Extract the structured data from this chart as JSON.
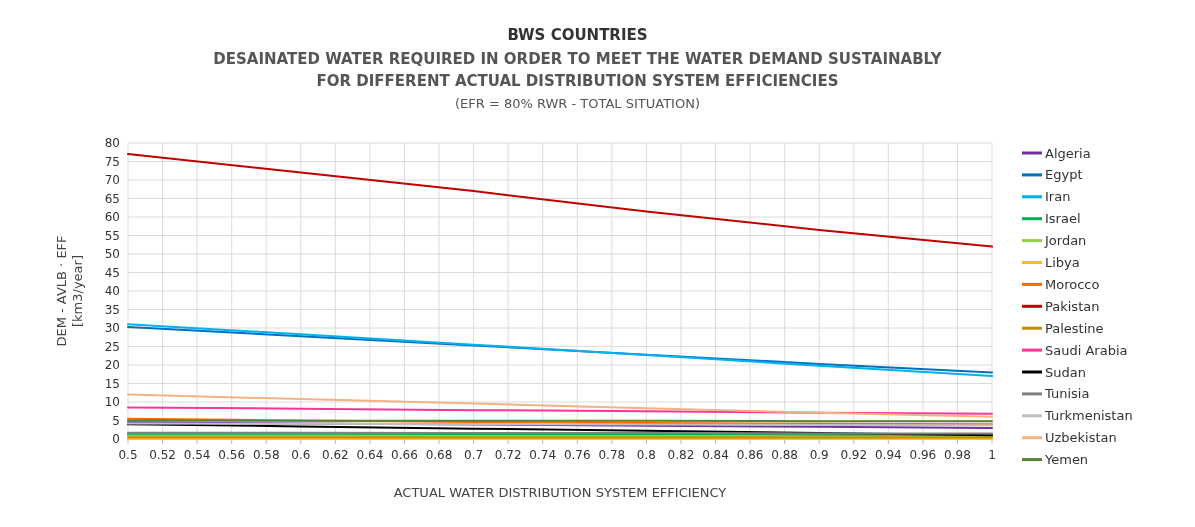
{
  "chart_data": {
    "type": "line",
    "title": "BWS COUNTRIES",
    "subtitle": "DESAINATED WATER REQUIRED IN ORDER TO MEET THE WATER DEMAND SUSTAINABLY\nFOR DIFFERENT ACTUAL DISTRIBUTION SYSTEM EFFICIENCIES",
    "annotations": [
      "(EFR = 80% RWR - TOTAL SITUATION)"
    ],
    "xlabel": "ACTUAL WATER DISTRIBUTION SYSTEM EFFICIENCY",
    "ylabel": "DEM - AVLB · EFF\n[km3/year]",
    "x": [
      0.5,
      0.6,
      0.7,
      0.8,
      0.9,
      1
    ],
    "series": [
      {
        "name": "Algeria",
        "color": "#7030a0",
        "values": [
          4.5,
          4.2,
          3.9,
          3.6,
          3.3,
          3
        ]
      },
      {
        "name": "Egypt",
        "color": "#0070c0",
        "values": [
          30.3,
          27.8,
          25.3,
          22.8,
          20.3,
          18
        ]
      },
      {
        "name": "Iran",
        "color": "#00b0f0",
        "values": [
          31,
          28.3,
          25.5,
          22.7,
          19.8,
          17
        ]
      },
      {
        "name": "Israel",
        "color": "#00b050",
        "values": [
          1.3,
          1.3,
          1.2,
          1.2,
          1.1,
          1.1
        ]
      },
      {
        "name": "Jordan",
        "color": "#92d050",
        "values": [
          0.9,
          0.9,
          0.8,
          0.8,
          0.7,
          0.7
        ]
      },
      {
        "name": "Libya",
        "color": "#ffc000",
        "values": [
          0.1,
          0.1,
          0.1,
          0.1,
          0.1,
          0.1
        ]
      },
      {
        "name": "Morocco",
        "color": "#ff6600",
        "values": [
          5.5,
          5,
          4.6,
          4.3,
          4.1,
          4
        ]
      },
      {
        "name": "Pakistan",
        "color": "#c00000",
        "values": [
          77,
          72,
          67,
          61.5,
          56.5,
          52
        ]
      },
      {
        "name": "Palestine",
        "color": "#bf8f00",
        "values": [
          0.5,
          0.5,
          0.4,
          0.4,
          0.4,
          0.4
        ]
      },
      {
        "name": "Saudi Arabia",
        "color": "#ff3399",
        "values": [
          8.5,
          8.2,
          7.8,
          7.5,
          7.1,
          6.8
        ]
      },
      {
        "name": "Sudan",
        "color": "#000000",
        "values": [
          4,
          3.4,
          2.8,
          2.2,
          1.6,
          1
        ]
      },
      {
        "name": "Tunisia",
        "color": "#808080",
        "values": [
          1.7,
          1.7,
          1.6,
          1.6,
          1.5,
          1.5
        ]
      },
      {
        "name": "Turkmenistan",
        "color": "#bfbfbf",
        "values": [
          4.2,
          4.1,
          4,
          3.9,
          3.8,
          3.7
        ]
      },
      {
        "name": "Uzbekistan",
        "color": "#f4b183",
        "values": [
          12,
          10.8,
          9.6,
          8.3,
          7.1,
          6
        ]
      },
      {
        "name": "Yemen",
        "color": "#548235",
        "values": [
          5,
          4.9,
          4.9,
          4.9,
          4.8,
          4.8
        ]
      }
    ],
    "xlim": [
      0.5,
      1
    ],
    "xticks": [
      0.5,
      0.52,
      0.54,
      0.56,
      0.58,
      0.6,
      0.62,
      0.64,
      0.66,
      0.68,
      0.7,
      0.72,
      0.74,
      0.76,
      0.78,
      0.8,
      0.82,
      0.84,
      0.86,
      0.88,
      0.9,
      0.92,
      0.94,
      0.96,
      0.98,
      1
    ],
    "ylim": [
      0,
      80
    ],
    "yticks": [
      0,
      5,
      10,
      15,
      20,
      25,
      30,
      35,
      40,
      45,
      50,
      55,
      60,
      65,
      70,
      75,
      80
    ],
    "grid": true,
    "legend": "right",
    "marker": "none",
    "line_style": "solid"
  }
}
